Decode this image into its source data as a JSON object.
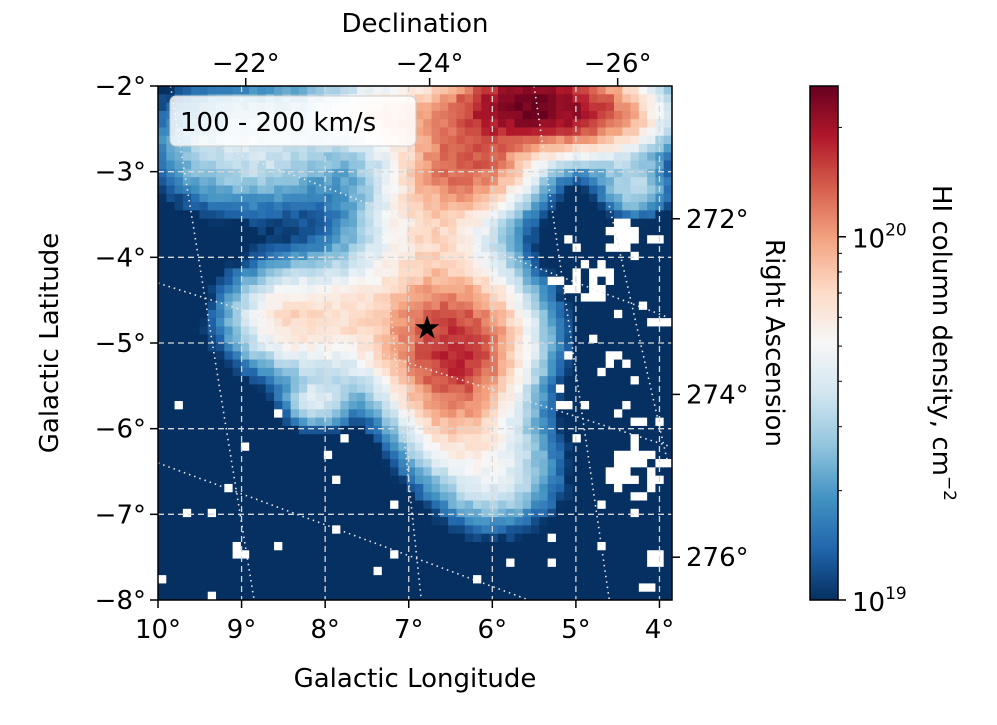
{
  "chart_data": {
    "type": "heatmap",
    "title": "",
    "annotation": "100 - 200 km/s",
    "xlabel": "Galactic Longitude",
    "ylabel": "Galactic Latitude",
    "top_axis_label": "Declination",
    "right_axis_label": "Right Ascension",
    "xlim": [
      10,
      3.85
    ],
    "ylim": [
      -8,
      -2
    ],
    "x_ticks": [
      {
        "value": 10,
        "label": "10°"
      },
      {
        "value": 9,
        "label": "9°"
      },
      {
        "value": 8,
        "label": "8°"
      },
      {
        "value": 7,
        "label": "7°"
      },
      {
        "value": 6,
        "label": "6°"
      },
      {
        "value": 5,
        "label": "5°"
      },
      {
        "value": 4,
        "label": "4°"
      }
    ],
    "y_ticks": [
      {
        "value": -2,
        "label": "−2°"
      },
      {
        "value": -3,
        "label": "−3°"
      },
      {
        "value": -4,
        "label": "−4°"
      },
      {
        "value": -5,
        "label": "−5°"
      },
      {
        "value": -6,
        "label": "−6°"
      },
      {
        "value": -7,
        "label": "−7°"
      },
      {
        "value": -8,
        "label": "−8°"
      }
    ],
    "top_ticks": [
      {
        "l": 8.95,
        "label": "−22°"
      },
      {
        "l": 6.75,
        "label": "−24°"
      },
      {
        "l": 4.5,
        "label": "−26°"
      }
    ],
    "right_ticks": [
      {
        "b": -3.55,
        "label": "272°"
      },
      {
        "b": -5.6,
        "label": "274°"
      },
      {
        "b": -7.5,
        "label": "276°"
      }
    ],
    "declination_lines": [
      [
        [
          9.85,
          -2.0
        ],
        [
          8.85,
          -8.0
        ]
      ],
      [
        [
          7.5,
          -2.0
        ],
        [
          6.85,
          -8.0
        ]
      ],
      [
        [
          5.5,
          -2.0
        ],
        [
          4.6,
          -8.0
        ]
      ],
      [
        [
          4.6,
          -3.4
        ],
        [
          3.9,
          -6.4
        ]
      ]
    ],
    "right_ascension_lines": [
      [
        [
          9.3,
          -2.7
        ],
        [
          3.9,
          -4.7
        ]
      ],
      [
        [
          10.0,
          -4.3
        ],
        [
          3.9,
          -6.2
        ]
      ],
      [
        [
          10.0,
          -6.4
        ],
        [
          3.9,
          -8.6
        ]
      ]
    ],
    "gridlines": true,
    "colorbar": {
      "label": "HI column density, cm",
      "label_exponent": "−2",
      "scale": "log",
      "range": [
        1e+19,
        2.6e+20
      ],
      "ticks": [
        {
          "base": "10",
          "exp": "19",
          "value": 1e+19
        },
        {
          "base": "10",
          "exp": "20",
          "value": 1e+20
        }
      ],
      "colors": [
        "#053061",
        "#2166ac",
        "#4393c3",
        "#92c5de",
        "#d1e5f0",
        "#f7f7f7",
        "#fddbc7",
        "#f4a582",
        "#d6604d",
        "#b2182b",
        "#67001f"
      ]
    },
    "marker": {
      "symbol": "★",
      "l": 6.78,
      "b": -4.82,
      "name": "source position"
    },
    "emission_components": [
      {
        "l": 6.35,
        "b": -4.95,
        "sigma_l": 0.55,
        "sigma_b": 0.5,
        "log_peak": 20.0
      },
      {
        "l": 6.5,
        "b": -5.55,
        "sigma_l": 0.45,
        "sigma_b": 0.55,
        "log_peak": 19.9
      },
      {
        "l": 7.45,
        "b": -4.75,
        "sigma_l": 0.9,
        "sigma_b": 0.5,
        "log_peak": 19.7
      },
      {
        "l": 8.45,
        "b": -4.7,
        "sigma_l": 0.45,
        "sigma_b": 0.35,
        "log_peak": 19.6
      },
      {
        "l": 5.95,
        "b": -6.5,
        "sigma_l": 0.5,
        "sigma_b": 0.45,
        "log_peak": 19.55
      },
      {
        "l": 6.75,
        "b": -3.6,
        "sigma_l": 0.55,
        "sigma_b": 0.55,
        "log_peak": 19.75
      },
      {
        "l": 6.25,
        "b": -2.9,
        "sigma_l": 0.5,
        "sigma_b": 0.35,
        "log_peak": 20.05
      },
      {
        "l": 5.6,
        "b": -2.2,
        "sigma_l": 0.6,
        "sigma_b": 0.3,
        "log_peak": 20.35
      },
      {
        "l": 4.7,
        "b": -2.35,
        "sigma_l": 0.55,
        "sigma_b": 0.3,
        "log_peak": 19.95
      },
      {
        "l": 7.2,
        "b": -2.3,
        "sigma_l": 0.6,
        "sigma_b": 0.3,
        "log_peak": 19.75
      },
      {
        "l": 8.9,
        "b": -2.7,
        "sigma_l": 0.8,
        "sigma_b": 0.5,
        "log_peak": 19.55
      },
      {
        "l": 4.3,
        "b": -3.2,
        "sigma_l": 0.3,
        "sigma_b": 0.25,
        "log_peak": 19.45
      },
      {
        "l": 8.1,
        "b": -5.7,
        "sigma_l": 0.25,
        "sigma_b": 0.2,
        "log_peak": 19.5
      }
    ],
    "blank_regions": [
      {
        "l": 4.3,
        "b": -6.5,
        "r": 0.32
      },
      {
        "l": 4.8,
        "b": -4.3,
        "r": 0.25
      },
      {
        "l": 4.45,
        "b": -3.8,
        "r": 0.22
      },
      {
        "l": 5.3,
        "b": -4.4,
        "r": 0.15
      },
      {
        "l": 4.05,
        "b": -7.5,
        "r": 0.1
      },
      {
        "l": 9.0,
        "b": -7.4,
        "r": 0.12
      },
      {
        "l": 8.5,
        "b": -7.35,
        "r": 0.12
      }
    ]
  }
}
